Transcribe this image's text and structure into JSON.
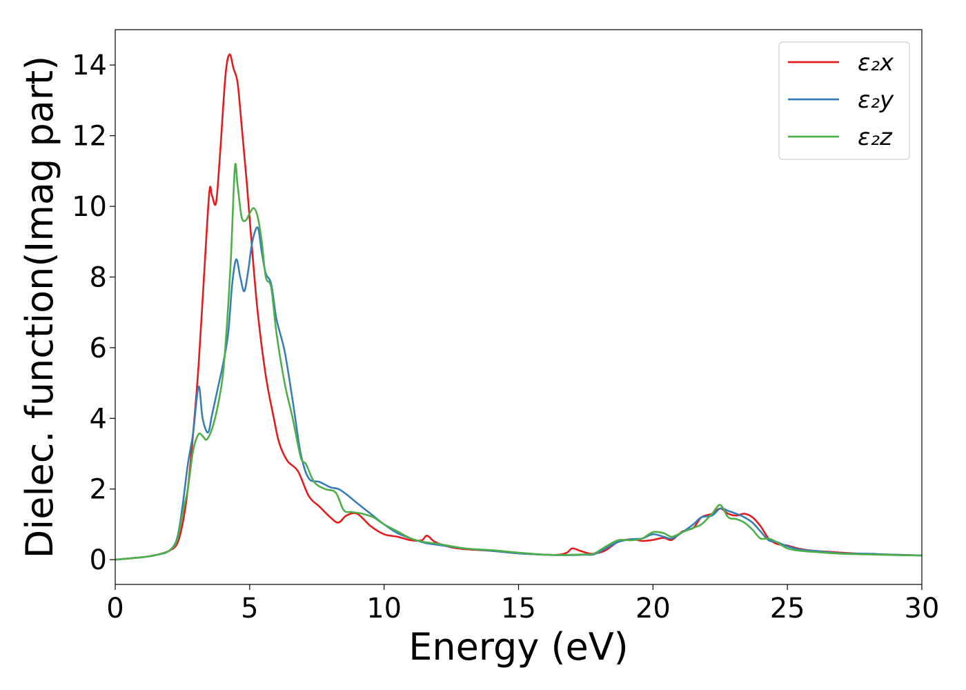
{
  "chart_data": {
    "type": "line",
    "xlabel": "Energy (eV)",
    "ylabel": "Dielec. function(Imag part)",
    "xlim": [
      0,
      30
    ],
    "ylim": [
      -0.7,
      15
    ],
    "xticks": [
      0,
      5,
      10,
      15,
      20,
      25,
      30
    ],
    "yticks": [
      0,
      2,
      4,
      6,
      8,
      10,
      12,
      14
    ],
    "grid": false,
    "legend_position": "top-right",
    "series": [
      {
        "name": "ε₂x",
        "color": "#e41a1c",
        "x": [
          0,
          1,
          1.5,
          2,
          2.3,
          2.5,
          2.7,
          2.9,
          3.1,
          3.3,
          3.5,
          3.6,
          3.75,
          3.9,
          4.1,
          4.25,
          4.4,
          4.55,
          4.7,
          4.9,
          5.1,
          5.3,
          5.6,
          5.9,
          6.1,
          6.4,
          6.8,
          7.2,
          7.6,
          8.0,
          8.3,
          8.6,
          9.0,
          9.5,
          10,
          10.5,
          11,
          11.4,
          11.6,
          11.9,
          12.5,
          13,
          14,
          15,
          16,
          16.5,
          16.8,
          17.0,
          17.3,
          17.6,
          17.8,
          18.2,
          18.7,
          19.2,
          19.6,
          20.0,
          20.4,
          20.7,
          21.1,
          21.5,
          21.8,
          22.2,
          22.5,
          22.8,
          23.1,
          23.4,
          23.7,
          24.0,
          24.3,
          24.6,
          25.0,
          25.5,
          26,
          27,
          28,
          29,
          30
        ],
        "y": [
          0,
          0.07,
          0.13,
          0.25,
          0.45,
          1.0,
          2.0,
          3.6,
          5.5,
          8.0,
          10.4,
          10.3,
          10.1,
          11.5,
          13.7,
          14.3,
          13.9,
          13.5,
          12.3,
          10.6,
          8.7,
          7.0,
          5.2,
          4.0,
          3.3,
          2.8,
          2.5,
          1.8,
          1.5,
          1.2,
          1.05,
          1.25,
          1.3,
          0.95,
          0.72,
          0.65,
          0.55,
          0.55,
          0.68,
          0.5,
          0.35,
          0.3,
          0.25,
          0.18,
          0.14,
          0.14,
          0.2,
          0.32,
          0.25,
          0.18,
          0.17,
          0.25,
          0.5,
          0.58,
          0.53,
          0.56,
          0.62,
          0.56,
          0.8,
          0.9,
          1.2,
          1.3,
          1.45,
          1.3,
          1.25,
          1.3,
          1.2,
          0.95,
          0.6,
          0.45,
          0.4,
          0.3,
          0.25,
          0.2,
          0.16,
          0.14,
          0.12
        ]
      },
      {
        "name": "ε₂y",
        "color": "#377eb8",
        "x": [
          0,
          1,
          1.5,
          2,
          2.3,
          2.5,
          2.7,
          2.9,
          3.1,
          3.25,
          3.45,
          3.6,
          3.8,
          4.0,
          4.2,
          4.35,
          4.5,
          4.65,
          4.8,
          4.95,
          5.1,
          5.3,
          5.45,
          5.6,
          5.8,
          6.0,
          6.3,
          6.6,
          6.9,
          7.2,
          7.6,
          8.0,
          8.3,
          8.6,
          9.0,
          9.5,
          10,
          10.5,
          11,
          11.5,
          12,
          13,
          14,
          15,
          16,
          16.5,
          17,
          17.5,
          17.8,
          18.2,
          18.7,
          19.2,
          19.6,
          20.0,
          20.4,
          20.7,
          21.1,
          21.5,
          21.8,
          22.2,
          22.5,
          22.8,
          23.1,
          23.4,
          23.7,
          24.0,
          24.3,
          24.6,
          25.0,
          25.5,
          26,
          27,
          28,
          29,
          30
        ],
        "y": [
          0,
          0.07,
          0.13,
          0.25,
          0.6,
          1.5,
          2.7,
          3.6,
          4.9,
          4.0,
          3.6,
          4.1,
          4.8,
          5.5,
          6.4,
          7.8,
          8.5,
          8.0,
          7.6,
          8.2,
          9.0,
          9.4,
          8.7,
          8.1,
          7.8,
          6.8,
          5.9,
          4.5,
          3.0,
          2.3,
          2.2,
          2.05,
          2.0,
          1.85,
          1.6,
          1.3,
          1.0,
          0.75,
          0.6,
          0.48,
          0.42,
          0.32,
          0.25,
          0.18,
          0.14,
          0.13,
          0.13,
          0.14,
          0.15,
          0.3,
          0.5,
          0.58,
          0.6,
          0.72,
          0.65,
          0.6,
          0.78,
          1.0,
          1.2,
          1.25,
          1.45,
          1.38,
          1.3,
          1.2,
          1.05,
          0.8,
          0.55,
          0.5,
          0.38,
          0.28,
          0.25,
          0.18,
          0.17,
          0.14,
          0.12
        ]
      },
      {
        "name": "ε₂z",
        "color": "#4daf4a",
        "x": [
          0,
          1,
          1.5,
          2,
          2.3,
          2.5,
          2.7,
          2.9,
          3.1,
          3.25,
          3.4,
          3.6,
          3.8,
          4.0,
          4.15,
          4.3,
          4.45,
          4.55,
          4.7,
          4.85,
          5.0,
          5.15,
          5.3,
          5.45,
          5.6,
          5.8,
          6.0,
          6.3,
          6.6,
          6.9,
          7.1,
          7.4,
          7.8,
          8.2,
          8.5,
          8.8,
          9.2,
          9.6,
          10,
          10.5,
          11,
          11.5,
          12,
          13,
          14,
          15,
          16,
          16.5,
          17,
          17.5,
          17.8,
          18.2,
          18.7,
          19.2,
          19.6,
          20.0,
          20.4,
          20.7,
          21.1,
          21.5,
          21.8,
          22.2,
          22.5,
          22.8,
          23.1,
          23.4,
          23.7,
          24.0,
          24.3,
          24.6,
          25.0,
          25.5,
          26,
          27,
          28,
          29,
          30
        ],
        "y": [
          0,
          0.07,
          0.13,
          0.25,
          0.55,
          1.3,
          2.0,
          3.1,
          3.55,
          3.5,
          3.4,
          3.7,
          4.3,
          5.2,
          6.6,
          8.5,
          11.1,
          10.6,
          9.7,
          9.6,
          9.8,
          9.95,
          9.7,
          9.0,
          8.0,
          7.7,
          6.4,
          5.0,
          4.0,
          2.9,
          2.7,
          2.2,
          2.0,
          1.9,
          1.4,
          1.35,
          1.3,
          1.2,
          1.0,
          0.8,
          0.6,
          0.5,
          0.45,
          0.32,
          0.27,
          0.2,
          0.14,
          0.13,
          0.14,
          0.15,
          0.17,
          0.35,
          0.55,
          0.55,
          0.6,
          0.78,
          0.75,
          0.65,
          0.78,
          0.9,
          1.0,
          1.3,
          1.55,
          1.2,
          1.15,
          1.05,
          0.85,
          0.6,
          0.6,
          0.5,
          0.32,
          0.25,
          0.22,
          0.17,
          0.15,
          0.13,
          0.12
        ]
      }
    ]
  }
}
